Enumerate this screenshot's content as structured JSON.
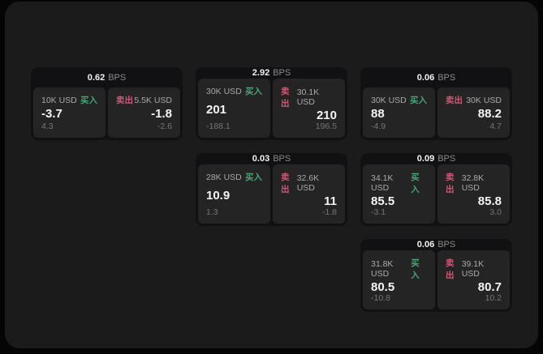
{
  "labels": {
    "bps_unit": "BPS",
    "buy": "买入",
    "sell": "卖出"
  },
  "colors": {
    "buy": "#3fa974",
    "sell": "#cf5876",
    "page_background": "#1b1b1c",
    "card_background": "#111113",
    "panel_background": "#242425"
  },
  "cards": [
    {
      "row": 1,
      "column": 1,
      "bps": "0.62",
      "buy": {
        "amount": "10K USD",
        "price": "-3.7",
        "change": "4.3"
      },
      "sell": {
        "amount": "5.5K USD",
        "price": "-1.8",
        "change": "-2.6"
      }
    },
    {
      "row": 1,
      "column": 2,
      "bps": "2.92",
      "buy": {
        "amount": "30K USD",
        "price": "201",
        "change": "-188.1"
      },
      "sell": {
        "amount": "30.1K USD",
        "price": "210",
        "change": "196.5"
      }
    },
    {
      "row": 1,
      "column": 3,
      "bps": "0.06",
      "buy": {
        "amount": "30K USD",
        "price": "88",
        "change": "-4.9"
      },
      "sell": {
        "amount": "30K USD",
        "price": "88.2",
        "change": "4.7"
      }
    },
    {
      "row": 2,
      "column": 2,
      "bps": "0.03",
      "buy": {
        "amount": "28K USD",
        "price": "10.9",
        "change": "1.3"
      },
      "sell": {
        "amount": "32.6K USD",
        "price": "11",
        "change": "-1.8"
      }
    },
    {
      "row": 2,
      "column": 3,
      "bps": "0.09",
      "buy": {
        "amount": "34.1K USD",
        "price": "85.5",
        "change": "-3.1"
      },
      "sell": {
        "amount": "32.8K USD",
        "price": "85.8",
        "change": "3.0"
      }
    },
    {
      "row": 3,
      "column": 3,
      "bps": "0.06",
      "buy": {
        "amount": "31.8K USD",
        "price": "80.5",
        "change": "-10.8"
      },
      "sell": {
        "amount": "39.1K USD",
        "price": "80.7",
        "change": "10.2"
      }
    }
  ]
}
